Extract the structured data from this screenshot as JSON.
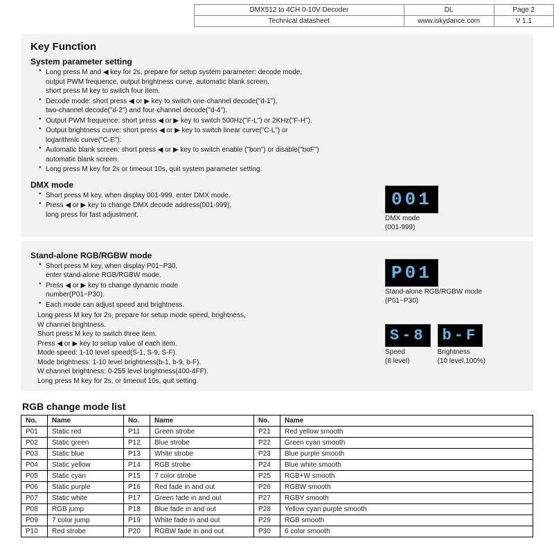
{
  "header": {
    "product": "DMX512 to 4CH 0-10V Decoder",
    "dl": "DL",
    "page": "Page 2",
    "doc": "Technical datasheet",
    "site": "www.iskydance.com",
    "ver": "V 1.1"
  },
  "keyfn": {
    "title": "Key Function",
    "sys_title": "System parameter setting",
    "sys_b1a": "Long press M and ◀ key for 2s, prepare for setup system parameter: decode mode,",
    "sys_b1b": "output PWM frequence, output brightness curve, automatic blank screen.",
    "sys_b1c": "short press M key to switch four item.",
    "sys_b2a": "Decode mode: short press ◀ or ▶ key to switch one-channel decode(\"d-1\"),",
    "sys_b2b": "two-channel decode(\"d-2\") and four-channel decode(\"d-4\").",
    "sys_b3": "Output PWM frequence: short press ◀ or ▶ key to switch 500Hz(\"F-L\") or 2KHz(\"F-H\").",
    "sys_b4a": "Output brightness curve: short press ◀ or ▶ key to switch linear curve(\"C-L\") or",
    "sys_b4b": "logarithmic curve(\"C-E\").",
    "sys_b5a": "Automatic blank screen: short press ◀ or ▶ key to switch enable (\"bon\") or disable(\"boF\")",
    "sys_b5b": "automatic blank screen.",
    "sys_b6": "Long press M key for 2s or timeout 10s, quit system parameter setting.",
    "dmx_title": "DMX mode",
    "dmx_b1": "Short press M key, when display 001-999, enter DMX mode.",
    "dmx_b2a": "Press  ◀ or ▶ key to change DMX decode address(001-999),",
    "dmx_b2b": "long press for fast adjustment.",
    "dmx_led": "001",
    "dmx_cap1": "DMX mode",
    "dmx_cap2": "(001-999)"
  },
  "rgbw": {
    "title": "Stand-alone RGB/RGBW mode",
    "b1a": "Short press M key, when display P01~P30,",
    "b1b": "enter stand-alone RGB/RGBW mode.",
    "b2a": "Press ◀ or ▶ key to change dynamic mode",
    "b2b": "number(P01~P30).",
    "b3": "Each mode can adjust speed and brightness.",
    "s1": "Long press M key for 2s, prepare for setup mode speed, brightness,",
    "s2": "W channel brightness.",
    "s3": "Short press M key to switch three item.",
    "s4": "Press ◀ or ▶ key to setup value of each item.",
    "s5": "Mode speed: 1-10 level speed(S-1, S-9, S-F).",
    "s6": "Mode brightness: 1-10 level brightness(b-1, b-9, b-F).",
    "s7": "W channel brightness: 0-255 level brightness(400-4FF).",
    "s8": "Long press M key for 2s, or timeout 10s, quit setting.",
    "led_p": "P01",
    "cap_p1": "Stand-alone RGB/RGBW mode",
    "cap_p2": "(P01~P30)",
    "led_s": "S-8",
    "cap_s1": "Speed",
    "cap_s2": "(8 level)",
    "led_b": "b-F",
    "cap_b1": "Brightness",
    "cap_b2": "(10 level,100%)"
  },
  "modetable": {
    "title": "RGB change mode list",
    "hNo": "No.",
    "hName": "Name",
    "rows": [
      [
        "P01",
        "Static red",
        "P11",
        "Green strobe",
        "P21",
        "Red yellow smooth"
      ],
      [
        "P02",
        "Static green",
        "P12",
        "Blue strobe",
        "P22",
        "Green cyan smooth"
      ],
      [
        "P03",
        "Static blue",
        "P13",
        "White strobe",
        "P23",
        "Blue  purple smooth"
      ],
      [
        "P04",
        "Static yellow",
        "P14",
        "RGB strobe",
        "P24",
        "Blue white smooth"
      ],
      [
        "P05",
        "Static cyan",
        "P15",
        "7 color strobe",
        "P25",
        "RGB+W smooth"
      ],
      [
        "P06",
        "Static purple",
        "P16",
        "Red fade in and out",
        "P26",
        "RGBW smooth"
      ],
      [
        "P07",
        "Static white",
        "P17",
        "Green fade in and out",
        "P27",
        "RGBY smooth"
      ],
      [
        "P08",
        "RGB jump",
        "P18",
        "Blue fade in and out",
        "P28",
        "Yellow cyan purple smooth"
      ],
      [
        "P09",
        "7 color jump",
        "P19",
        "White fade in and out",
        "P29",
        "RGB smooth"
      ],
      [
        "P10",
        "Red strobe",
        "P20",
        "RGBW fade in and out",
        "P30",
        "6 color smooth"
      ]
    ]
  },
  "colors": {
    "led_bg": "#000000",
    "led_fg": "#5fb8e8",
    "section_bg": "#f2f2f2",
    "text": "#1a1a1a"
  }
}
